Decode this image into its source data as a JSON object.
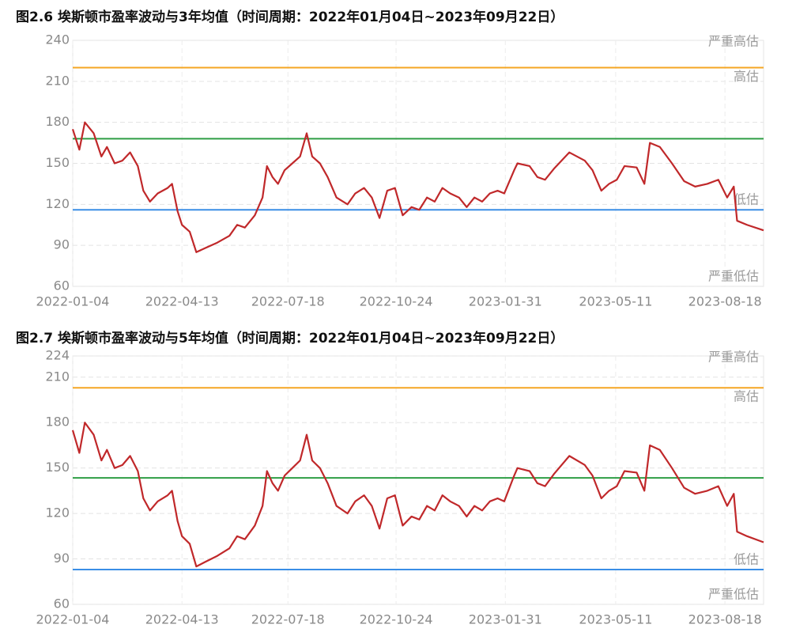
{
  "chart_data": [
    {
      "type": "line",
      "title": "图2.6 埃斯顿市盈率波动与3年均值（时间周期：2022年01月04日~2023年09月22日）",
      "x": [
        "2022-01-04",
        "2022-01-10",
        "2022-01-15",
        "2022-01-23",
        "2022-01-30",
        "2022-02-04",
        "2022-02-11",
        "2022-02-18",
        "2022-02-25",
        "2022-03-04",
        "2022-03-09",
        "2022-03-15",
        "2022-03-22",
        "2022-03-31",
        "2022-04-04",
        "2022-04-09",
        "2022-04-13",
        "2022-04-20",
        "2022-04-26",
        "2022-05-04",
        "2022-05-15",
        "2022-05-26",
        "2022-06-02",
        "2022-06-09",
        "2022-06-18",
        "2022-06-25",
        "2022-06-29",
        "2022-07-04",
        "2022-07-09",
        "2022-07-15",
        "2022-07-22",
        "2022-07-29",
        "2022-08-04",
        "2022-08-09",
        "2022-08-16",
        "2022-08-23",
        "2022-08-31",
        "2022-09-10",
        "2022-09-17",
        "2022-09-25",
        "2022-10-02",
        "2022-10-09",
        "2022-10-16",
        "2022-10-23",
        "2022-10-30",
        "2022-11-07",
        "2022-11-14",
        "2022-11-21",
        "2022-11-28",
        "2022-12-05",
        "2022-12-12",
        "2022-12-20",
        "2022-12-27",
        "2023-01-03",
        "2023-01-10",
        "2023-01-17",
        "2023-01-24",
        "2023-01-30",
        "2023-02-08",
        "2023-02-11",
        "2023-02-22",
        "2023-03-01",
        "2023-03-08",
        "2023-03-16",
        "2023-03-30",
        "2023-04-13",
        "2023-04-20",
        "2023-04-28",
        "2023-05-05",
        "2023-05-12",
        "2023-05-19",
        "2023-05-30",
        "2023-06-06",
        "2023-06-11",
        "2023-06-20",
        "2023-07-01",
        "2023-07-12",
        "2023-07-22",
        "2023-08-02",
        "2023-08-12",
        "2023-08-20",
        "2023-08-26",
        "2023-08-29",
        "2023-09-07",
        "2023-09-22"
      ],
      "series": [
        {
          "color": "#c0282a",
          "values": [
            175,
            160,
            180,
            172,
            155,
            162,
            150,
            152,
            158,
            148,
            130,
            122,
            128,
            132,
            135,
            115,
            105,
            100,
            85,
            88,
            92,
            97,
            105,
            103,
            112,
            125,
            148,
            140,
            135,
            145,
            150,
            155,
            172,
            155,
            150,
            140,
            125,
            120,
            128,
            132,
            125,
            110,
            130,
            132,
            112,
            118,
            116,
            125,
            122,
            132,
            128,
            125,
            118,
            125,
            122,
            128,
            130,
            128,
            145,
            150,
            148,
            140,
            138,
            146,
            158,
            152,
            145,
            130,
            135,
            138,
            148,
            147,
            135,
            165,
            162,
            150,
            137,
            133,
            135,
            138,
            125,
            133,
            108,
            105,
            101
          ]
        }
      ],
      "reference_lines": [
        {
          "value": 220,
          "color": "#f5a623"
        },
        {
          "value": 168,
          "color": "#2e9e44"
        },
        {
          "value": 116,
          "color": "#3a8ee6"
        }
      ],
      "zone_labels": {
        "severe_high": "严重高估",
        "high": "高估",
        "low": "低估",
        "severe_low": "严重低估"
      },
      "xlim": [
        "2022-01-04",
        "2023-09-22"
      ],
      "xticks": [
        "2022-01-04",
        "2022-04-13",
        "2022-07-18",
        "2022-10-24",
        "2023-01-31",
        "2023-05-11",
        "2023-08-18"
      ],
      "ylim": [
        60,
        240
      ],
      "yticks": [
        60,
        90,
        120,
        150,
        180,
        210,
        240
      ],
      "grid": true
    },
    {
      "type": "line",
      "title": "图2.7 埃斯顿市盈率波动与5年均值（时间周期：2022年01月04日~2023年09月22日）",
      "x": [
        "2022-01-04",
        "2022-01-10",
        "2022-01-15",
        "2022-01-23",
        "2022-01-30",
        "2022-02-04",
        "2022-02-11",
        "2022-02-18",
        "2022-02-25",
        "2022-03-04",
        "2022-03-09",
        "2022-03-15",
        "2022-03-22",
        "2022-03-31",
        "2022-04-04",
        "2022-04-09",
        "2022-04-13",
        "2022-04-20",
        "2022-04-26",
        "2022-05-04",
        "2022-05-15",
        "2022-05-26",
        "2022-06-02",
        "2022-06-09",
        "2022-06-18",
        "2022-06-25",
        "2022-06-29",
        "2022-07-04",
        "2022-07-09",
        "2022-07-15",
        "2022-07-22",
        "2022-07-29",
        "2022-08-04",
        "2022-08-09",
        "2022-08-16",
        "2022-08-23",
        "2022-08-31",
        "2022-09-10",
        "2022-09-17",
        "2022-09-25",
        "2022-10-02",
        "2022-10-09",
        "2022-10-16",
        "2022-10-23",
        "2022-10-30",
        "2022-11-07",
        "2022-11-14",
        "2022-11-21",
        "2022-11-28",
        "2022-12-05",
        "2022-12-12",
        "2022-12-20",
        "2022-12-27",
        "2023-01-03",
        "2023-01-10",
        "2023-01-17",
        "2023-01-24",
        "2023-01-30",
        "2023-02-08",
        "2023-02-11",
        "2023-02-22",
        "2023-03-01",
        "2023-03-08",
        "2023-03-16",
        "2023-03-30",
        "2023-04-13",
        "2023-04-20",
        "2023-04-28",
        "2023-05-05",
        "2023-05-12",
        "2023-05-19",
        "2023-05-30",
        "2023-06-06",
        "2023-06-11",
        "2023-06-20",
        "2023-07-01",
        "2023-07-12",
        "2023-07-22",
        "2023-08-02",
        "2023-08-12",
        "2023-08-20",
        "2023-08-26",
        "2023-08-29",
        "2023-09-07",
        "2023-09-22"
      ],
      "series": [
        {
          "color": "#c0282a",
          "values": [
            175,
            160,
            180,
            172,
            155,
            162,
            150,
            152,
            158,
            148,
            130,
            122,
            128,
            132,
            135,
            115,
            105,
            100,
            85,
            88,
            92,
            97,
            105,
            103,
            112,
            125,
            148,
            140,
            135,
            145,
            150,
            155,
            172,
            155,
            150,
            140,
            125,
            120,
            128,
            132,
            125,
            110,
            130,
            132,
            112,
            118,
            116,
            125,
            122,
            132,
            128,
            125,
            118,
            125,
            122,
            128,
            130,
            128,
            145,
            150,
            148,
            140,
            138,
            146,
            158,
            152,
            145,
            130,
            135,
            138,
            148,
            147,
            135,
            165,
            162,
            150,
            137,
            133,
            135,
            138,
            125,
            133,
            108,
            105,
            101
          ]
        }
      ],
      "reference_lines": [
        {
          "value": 203,
          "color": "#f5a623"
        },
        {
          "value": 143.5,
          "color": "#2e9e44"
        },
        {
          "value": 83,
          "color": "#3a8ee6"
        }
      ],
      "zone_labels": {
        "severe_high": "严重高估",
        "high": "高估",
        "low": "低估",
        "severe_low": "严重低估"
      },
      "xlim": [
        "2022-01-04",
        "2023-09-22"
      ],
      "xticks": [
        "2022-01-04",
        "2022-04-13",
        "2022-07-18",
        "2022-10-24",
        "2023-01-31",
        "2023-05-11",
        "2023-08-18"
      ],
      "ylim": [
        60,
        224
      ],
      "yticks": [
        60,
        90,
        120,
        150,
        180,
        210,
        224
      ],
      "grid": true
    }
  ]
}
